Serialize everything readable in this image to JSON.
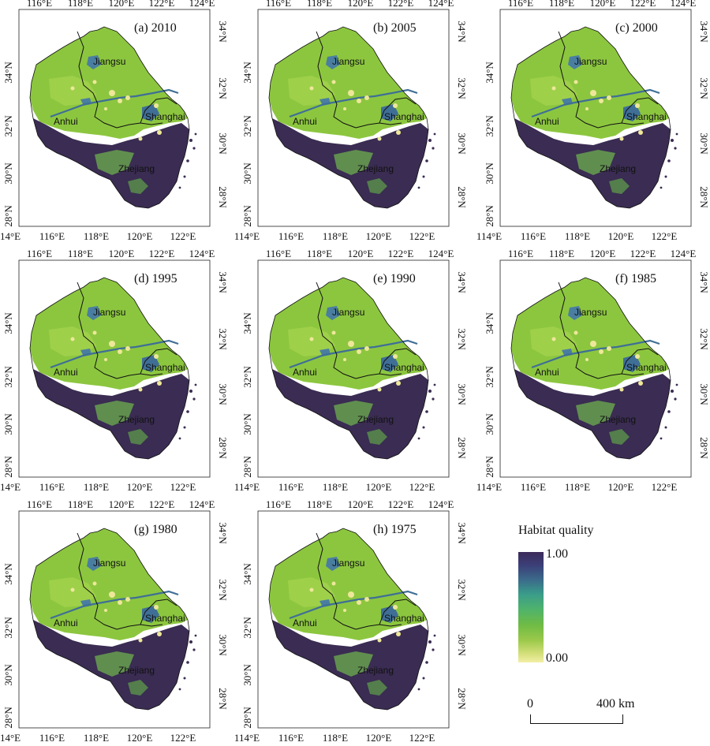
{
  "figure": {
    "panels": [
      {
        "label": "(a) 2010"
      },
      {
        "label": "(b) 2005"
      },
      {
        "label": "(c) 2000"
      },
      {
        "label": "(d) 1995"
      },
      {
        "label": "(e) 1990"
      },
      {
        "label": "(f) 1985"
      },
      {
        "label": "(g) 1980"
      },
      {
        "label": "(h) 1975"
      }
    ],
    "top_ticks": [
      "116°E",
      "118°E",
      "120°E",
      "122°E",
      "124°E"
    ],
    "bottom_ticks": [
      "114°E",
      "116°E",
      "118°E",
      "120°E",
      "122°E"
    ],
    "left_ticks": [
      "34°N",
      "32°N",
      "30°N",
      "28°N"
    ],
    "right_ticks": [
      "34°N",
      "32°N",
      "30°N",
      "28°N"
    ],
    "provinces": [
      "Jiangsu",
      "Anhui",
      "Shanghai",
      "Zhejiang"
    ]
  },
  "legend": {
    "title": "Habitat quality",
    "max_label": "1.00",
    "min_label": "0.00",
    "colors": [
      "#3d2a5a",
      "#3b6a8a",
      "#3a9c8a",
      "#6fbb45",
      "#f3eea5"
    ]
  },
  "scalebar": {
    "start_label": "0",
    "end_label": "400 km"
  }
}
